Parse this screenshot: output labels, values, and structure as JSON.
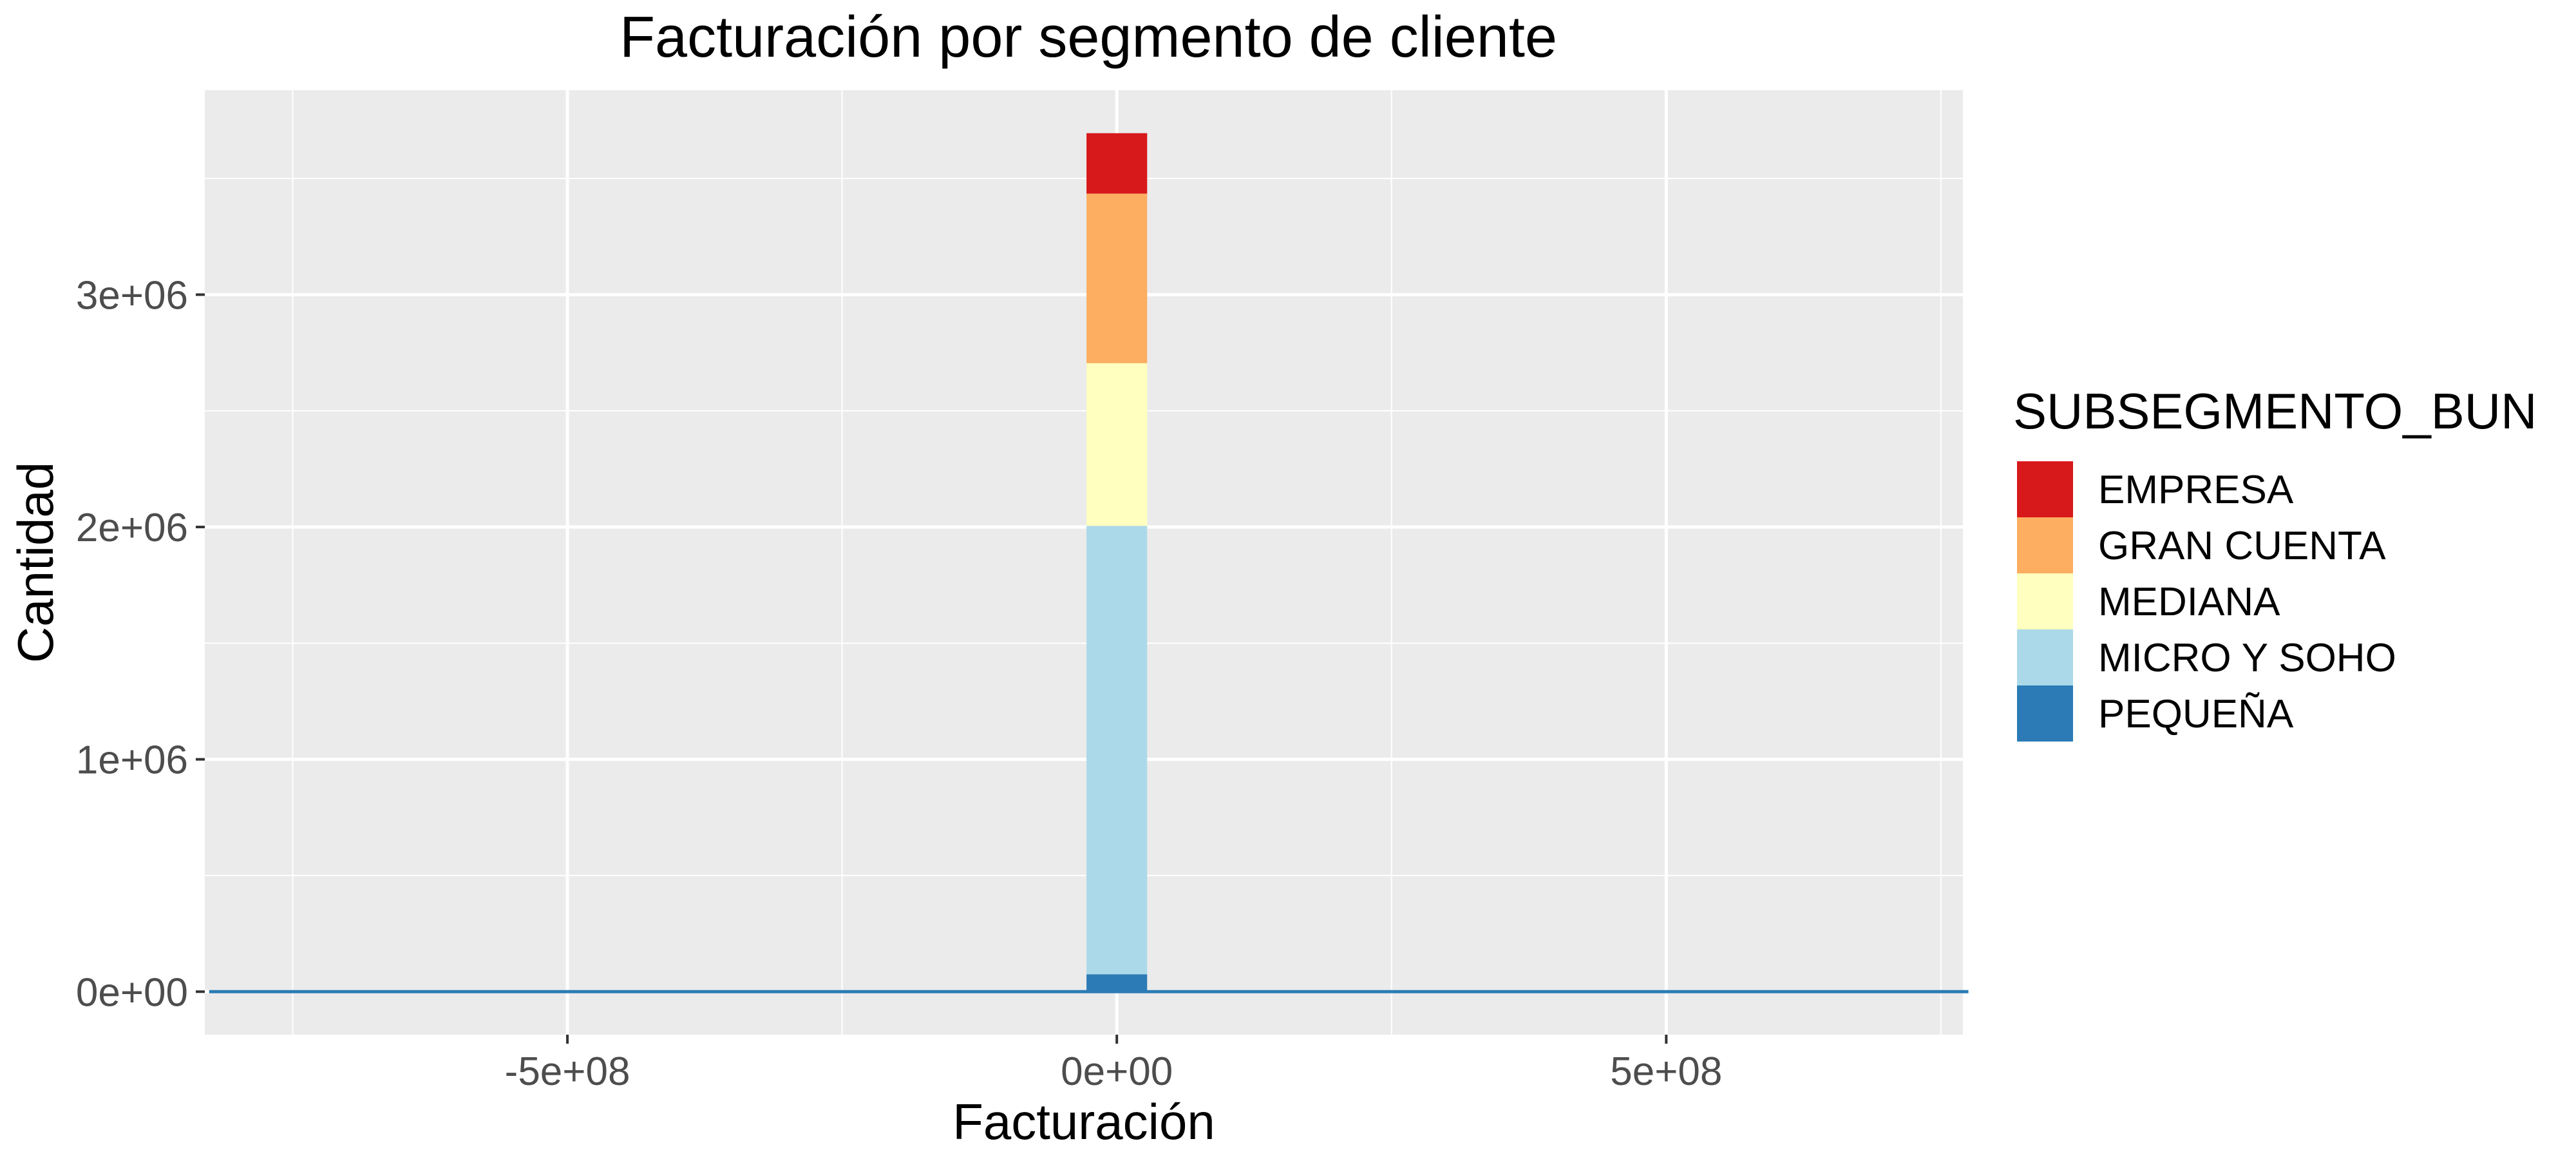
{
  "chart_data": {
    "type": "bar",
    "title": "Facturación por segmento de cliente",
    "xlabel": "Facturación",
    "ylabel": "Cantidad",
    "xlim": [
      -830000000,
      770000000
    ],
    "ylim": [
      -185000,
      3880000
    ],
    "x_ticks": [
      {
        "value": -500000000,
        "label": "-5e+08"
      },
      {
        "value": 0,
        "label": "0e+00"
      },
      {
        "value": 500000000,
        "label": "5e+08"
      }
    ],
    "y_ticks": [
      {
        "value": 0,
        "label": "0e+00"
      },
      {
        "value": 1000000,
        "label": "1e+06"
      },
      {
        "value": 2000000,
        "label": "2e+06"
      },
      {
        "value": 3000000,
        "label": "3e+06"
      }
    ],
    "grid": true,
    "stacked": true,
    "bin_range": [
      -826000000,
      775000000
    ],
    "main_bin": [
      -27600000,
      27600000
    ],
    "legend": {
      "title": "SUBSEGMENTO_BUN",
      "position": "right"
    },
    "series": [
      {
        "name": "PEQUEÑA",
        "color": "#2c7bb6",
        "value": 75000
      },
      {
        "name": "MICRO Y SOHO",
        "color": "#abd9e9",
        "value": 1930000
      },
      {
        "name": "MEDIANA",
        "color": "#ffffbf",
        "value": 700000
      },
      {
        "name": "GRAN CUENTA",
        "color": "#fdae61",
        "value": 730000
      },
      {
        "name": "EMPRESA",
        "color": "#d7191c",
        "value": 260000
      }
    ],
    "legend_order": [
      "EMPRESA",
      "GRAN CUENTA",
      "MEDIANA",
      "MICRO Y SOHO",
      "PEQUEÑA"
    ],
    "colors": {
      "panel": "#ebebeb",
      "grid": "#ffffff",
      "baseline_bins": "#2c7bb6"
    }
  }
}
